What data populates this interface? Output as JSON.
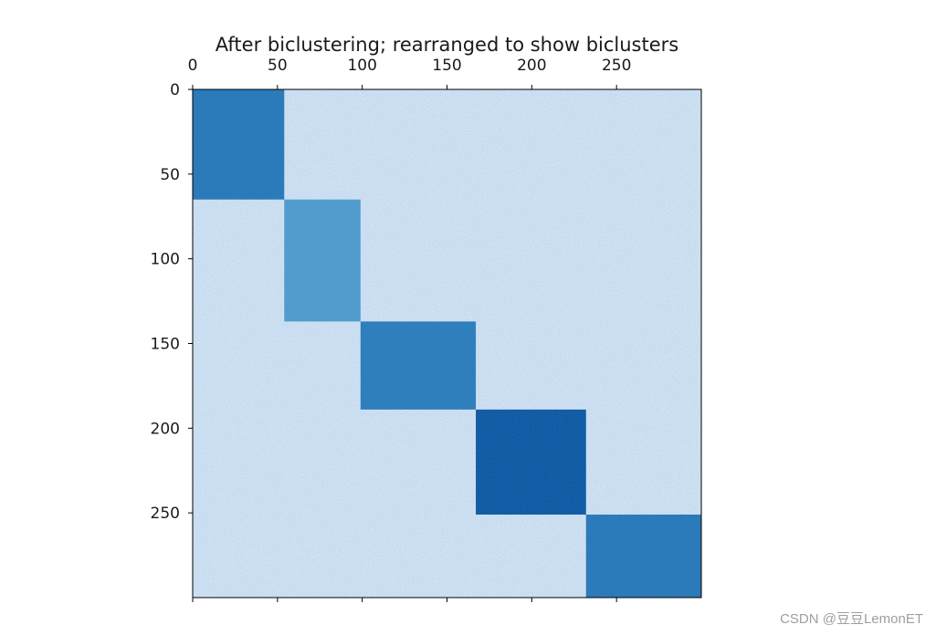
{
  "chart_data": {
    "type": "heatmap",
    "title": "After biclustering; rearranged to show biclusters",
    "xlabel": "",
    "ylabel": "",
    "x_axis_position": "top",
    "rows": 300,
    "cols": 300,
    "xlim": [
      0,
      300
    ],
    "ylim": [
      300,
      0
    ],
    "x_ticks": [
      0,
      50,
      100,
      150,
      200,
      250
    ],
    "y_ticks": [
      0,
      50,
      100,
      150,
      200,
      250
    ],
    "colormap": "Blues",
    "background_level": 0.2,
    "color_scale": [
      "#f7fbff",
      "#deebf7",
      "#c6dbef",
      "#9ecae1",
      "#6baed6",
      "#4292c6",
      "#2171b5",
      "#08519c",
      "#08306b"
    ],
    "biclusters": [
      {
        "row_range": [
          0,
          65
        ],
        "col_range": [
          0,
          54
        ],
        "level": 0.72
      },
      {
        "row_range": [
          65,
          137
        ],
        "col_range": [
          54,
          99
        ],
        "level": 0.58
      },
      {
        "row_range": [
          137,
          189
        ],
        "col_range": [
          99,
          167
        ],
        "level": 0.7
      },
      {
        "row_range": [
          189,
          251
        ],
        "col_range": [
          167,
          232
        ],
        "level": 0.84
      },
      {
        "row_range": [
          251,
          300
        ],
        "col_range": [
          232,
          300
        ],
        "level": 0.72
      }
    ],
    "grid": false,
    "legend": "none"
  },
  "watermark": {
    "text": "CSDN @豆豆LemonET"
  }
}
